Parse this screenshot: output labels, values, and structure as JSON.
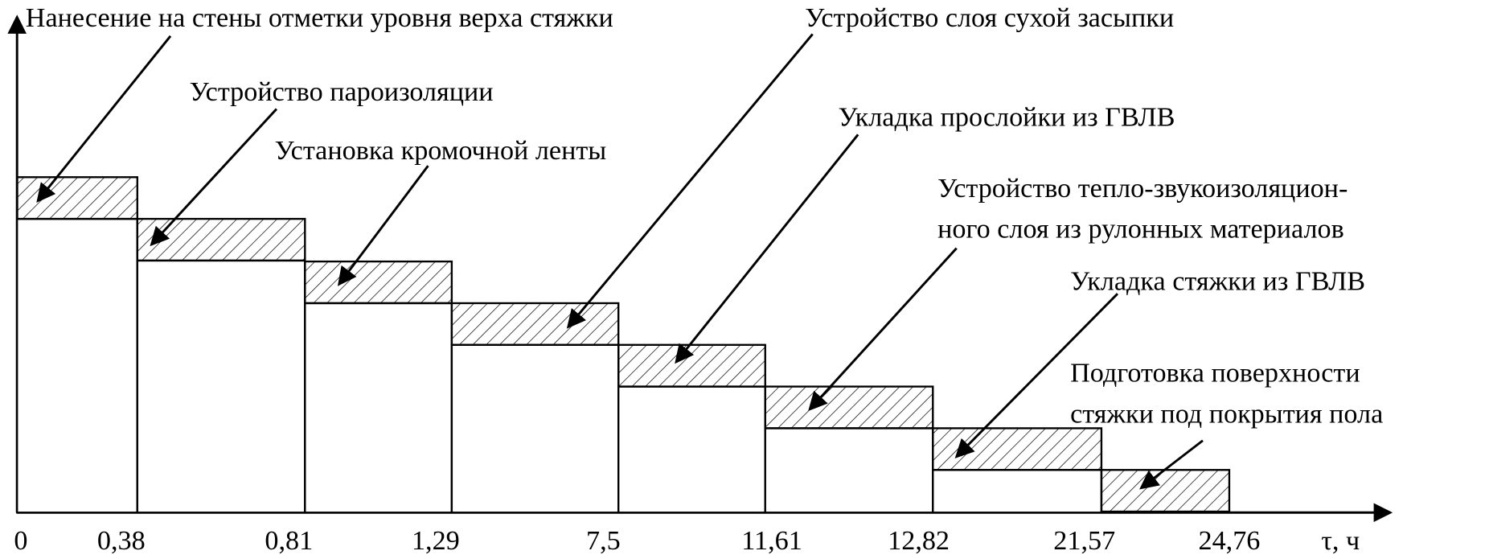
{
  "axis": {
    "ticks": [
      "0",
      "0,38",
      "0,81",
      "1,29",
      "7,5",
      "11,61",
      "12,82",
      "21,57",
      "24,76"
    ],
    "unit_label": "τ, ч"
  },
  "tasks": [
    {
      "label": [
        "Нанесение на стены отметки уровня верха стяжки"
      ]
    },
    {
      "label": [
        "Устройство пароизоляции"
      ]
    },
    {
      "label": [
        "Установка кромочной ленты"
      ]
    },
    {
      "label": [
        "Устройство слоя сухой засыпки"
      ]
    },
    {
      "label": [
        "Укладка прослойки из ГВЛВ"
      ]
    },
    {
      "label": [
        "Устройство тепло-звукоизоляцион-",
        "ного слоя из рулонных материалов"
      ]
    },
    {
      "label": [
        "Укладка стяжки из ГВЛВ"
      ]
    },
    {
      "label": [
        "Подготовка поверхности",
        "стяжки под покрытия пола"
      ]
    }
  ]
}
